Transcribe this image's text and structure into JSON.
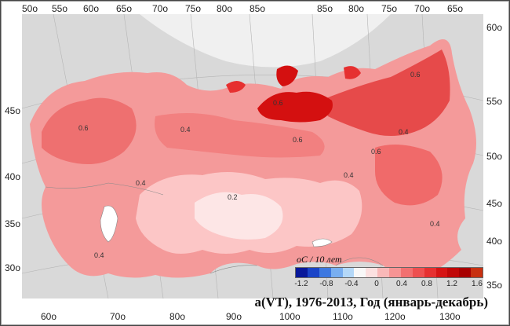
{
  "map": {
    "caption": "a(VT), 1976-2013, Год (январь-декабрь)",
    "legend": {
      "title": "oC / 10 лет",
      "ticks": [
        "-1.2",
        "-0.8",
        "-0.4",
        "0",
        "0.4",
        "0.8",
        "1.2",
        "1.6"
      ],
      "colors": [
        "#08189a",
        "#1a44c8",
        "#3d78e0",
        "#78aef0",
        "#b4d8f8",
        "#f8f8f8",
        "#fce0e0",
        "#f9b8b8",
        "#f69494",
        "#f27070",
        "#ee5050",
        "#e63030",
        "#d61414",
        "#c00808",
        "#a80000",
        "#c83010"
      ]
    },
    "top_lon_labels": [
      "50o",
      "55o",
      "60o",
      "65o",
      "70o",
      "75o",
      "80o",
      "85o",
      "85o",
      "80o",
      "75o",
      "70o",
      "65o"
    ],
    "bottom_lon_labels": [
      "60o",
      "70o",
      "80o",
      "90o",
      "100o",
      "110o",
      "120o",
      "130o"
    ],
    "left_lat_labels": [
      "45o",
      "40o",
      "35o",
      "30o"
    ],
    "right_lat_labels": [
      "60o",
      "55o",
      "50o",
      "45o",
      "40o",
      "35o"
    ],
    "isoline_labels": [
      "0.6",
      "0.4",
      "0.6",
      "0.4",
      "0.2",
      "0.4",
      "0.4",
      "0.6",
      "0.6",
      "0.4",
      "0.4",
      "0.6"
    ]
  }
}
